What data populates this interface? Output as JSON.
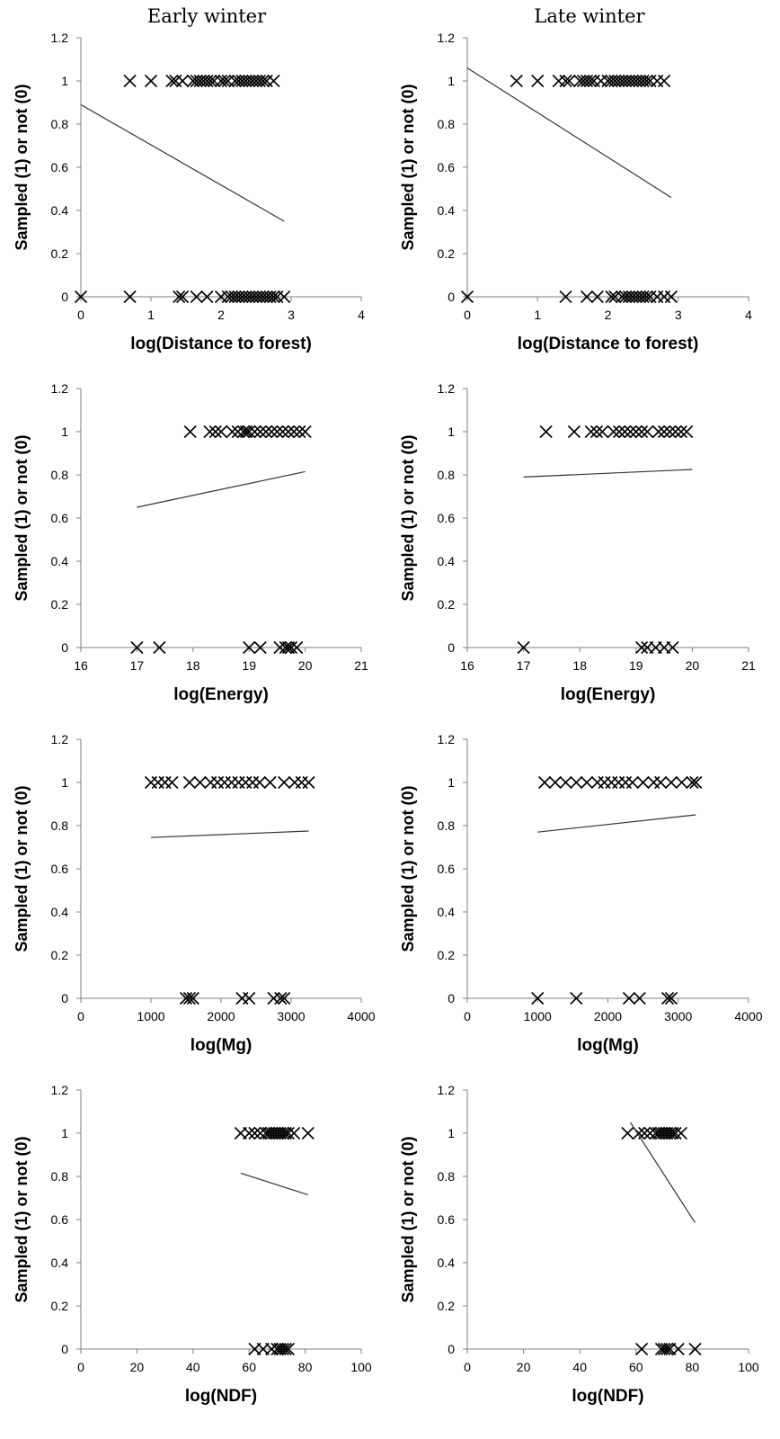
{
  "column_titles": [
    "Early winter",
    "Late winter"
  ],
  "chart_data": [
    {
      "type": "scatter",
      "panel": "early-distance",
      "xlabel": "log(Distance to forest)",
      "ylabel": "Sampled (1) or not (0)",
      "xlim": [
        0,
        4
      ],
      "ylim": [
        0,
        1.2
      ],
      "xticks": [
        "0",
        "1",
        "2",
        "3",
        "4"
      ],
      "yticks": [
        "0",
        "0.2",
        "0.4",
        "0.6",
        "0.8",
        "1",
        "1.2"
      ],
      "points_1": [
        0.7,
        1.0,
        1.3,
        1.35,
        1.45,
        1.6,
        1.65,
        1.7,
        1.75,
        1.8,
        1.85,
        1.9,
        2.0,
        2.05,
        2.1,
        2.2,
        2.25,
        2.3,
        2.35,
        2.4,
        2.45,
        2.5,
        2.55,
        2.6,
        2.65,
        2.75
      ],
      "points_0": [
        0.0,
        0.7,
        1.4,
        1.45,
        1.65,
        1.8,
        2.0,
        2.1,
        2.15,
        2.2,
        2.25,
        2.3,
        2.35,
        2.4,
        2.45,
        2.5,
        2.55,
        2.6,
        2.65,
        2.7,
        2.75,
        2.8,
        2.9
      ],
      "trend": [
        [
          0,
          0.89
        ],
        [
          2.9,
          0.35
        ]
      ]
    },
    {
      "type": "scatter",
      "panel": "late-distance",
      "xlabel": "log(Distance to forest)",
      "ylabel": "Sampled (1) or not (0)",
      "xlim": [
        0,
        4
      ],
      "ylim": [
        0,
        1.2
      ],
      "xticks": [
        "0",
        "1",
        "2",
        "3",
        "4"
      ],
      "yticks": [
        "0",
        "0.2",
        "0.4",
        "0.6",
        "0.8",
        "1",
        "1.2"
      ],
      "points_1": [
        0.7,
        1.0,
        1.3,
        1.4,
        1.45,
        1.6,
        1.65,
        1.7,
        1.75,
        1.8,
        1.9,
        2.0,
        2.05,
        2.1,
        2.15,
        2.2,
        2.25,
        2.3,
        2.35,
        2.4,
        2.45,
        2.5,
        2.55,
        2.6,
        2.7,
        2.8
      ],
      "points_0": [
        0.0,
        1.4,
        1.7,
        1.85,
        2.05,
        2.1,
        2.2,
        2.25,
        2.3,
        2.35,
        2.4,
        2.45,
        2.5,
        2.55,
        2.6,
        2.7,
        2.8,
        2.9
      ],
      "trend": [
        [
          0,
          1.06
        ],
        [
          2.9,
          0.46
        ]
      ]
    },
    {
      "type": "scatter",
      "panel": "early-energy",
      "xlabel": "log(Energy)",
      "ylabel": "Sampled (1) or not (0)",
      "xlim": [
        16,
        21
      ],
      "ylim": [
        0,
        1.2
      ],
      "xticks": [
        "16",
        "17",
        "18",
        "19",
        "20",
        "21"
      ],
      "yticks": [
        "0",
        "0.2",
        "0.4",
        "0.6",
        "0.8",
        "1",
        "1.2"
      ],
      "points_1": [
        17.95,
        18.3,
        18.4,
        18.5,
        18.7,
        18.8,
        18.9,
        18.95,
        19.0,
        19.1,
        19.2,
        19.3,
        19.4,
        19.5,
        19.6,
        19.7,
        19.8,
        19.9,
        20.0
      ],
      "points_0": [
        17.0,
        17.4,
        19.0,
        19.2,
        19.55,
        19.65,
        19.7,
        19.75,
        19.85
      ],
      "trend": [
        [
          17.0,
          0.65
        ],
        [
          20.0,
          0.815
        ]
      ]
    },
    {
      "type": "scatter",
      "panel": "late-energy",
      "xlabel": "log(Energy)",
      "ylabel": "Sampled (1) or not (0)",
      "xlim": [
        16,
        21
      ],
      "ylim": [
        0,
        1.2
      ],
      "xticks": [
        "16",
        "17",
        "18",
        "19",
        "20",
        "21"
      ],
      "yticks": [
        "0",
        "0.2",
        "0.4",
        "0.6",
        "0.8",
        "1",
        "1.2"
      ],
      "points_1": [
        17.4,
        17.9,
        18.2,
        18.3,
        18.4,
        18.6,
        18.7,
        18.8,
        18.9,
        19.0,
        19.1,
        19.2,
        19.4,
        19.5,
        19.6,
        19.7,
        19.8,
        19.9
      ],
      "points_0": [
        17.0,
        19.1,
        19.2,
        19.35,
        19.5,
        19.65
      ],
      "trend": [
        [
          17.0,
          0.79
        ],
        [
          20.0,
          0.825
        ]
      ]
    },
    {
      "type": "scatter",
      "panel": "early-mg",
      "xlabel": "log(Mg)",
      "ylabel": "Sampled (1) or not (0)",
      "xlim": [
        0,
        4000
      ],
      "ylim": [
        0,
        1.2
      ],
      "xticks": [
        "0",
        "1000",
        "2000",
        "3000",
        "4000"
      ],
      "yticks": [
        "0",
        "0.2",
        "0.4",
        "0.6",
        "0.8",
        "1",
        "1.2"
      ],
      "points_1": [
        1000,
        1100,
        1200,
        1300,
        1550,
        1700,
        1850,
        1950,
        2050,
        2150,
        2250,
        2350,
        2450,
        2550,
        2700,
        2900,
        3050,
        3150,
        3250
      ],
      "points_0": [
        1500,
        1550,
        1600,
        2300,
        2400,
        2750,
        2850,
        2900
      ],
      "trend": [
        [
          1000,
          0.745
        ],
        [
          3250,
          0.775
        ]
      ]
    },
    {
      "type": "scatter",
      "panel": "late-mg",
      "xlabel": "log(Mg)",
      "ylabel": "Sampled (1) or not (0)",
      "xlim": [
        0,
        4000
      ],
      "ylim": [
        0,
        1.2
      ],
      "xticks": [
        "0",
        "1000",
        "2000",
        "3000",
        "4000"
      ],
      "yticks": [
        "0",
        "0.2",
        "0.4",
        "0.6",
        "0.8",
        "1",
        "1.2"
      ],
      "points_1": [
        1100,
        1250,
        1400,
        1550,
        1700,
        1850,
        1950,
        2050,
        2150,
        2250,
        2350,
        2500,
        2650,
        2750,
        2900,
        3050,
        3200,
        3250
      ],
      "points_0": [
        1000,
        1550,
        2300,
        2450,
        2850,
        2900
      ],
      "trend": [
        [
          1000,
          0.77
        ],
        [
          3250,
          0.85
        ]
      ]
    },
    {
      "type": "scatter",
      "panel": "early-ndf",
      "xlabel": "log(NDF)",
      "ylabel": "Sampled (1) or not (0)",
      "xlim": [
        0,
        100
      ],
      "ylim": [
        0,
        1.2
      ],
      "xticks": [
        "0",
        "20",
        "40",
        "60",
        "80",
        "100"
      ],
      "yticks": [
        "0",
        "0.2",
        "0.4",
        "0.6",
        "0.8",
        "1",
        "1.2"
      ],
      "points_1": [
        57,
        60,
        62,
        64,
        66,
        67,
        68,
        69,
        70,
        71,
        72,
        73,
        74,
        76,
        81
      ],
      "points_0": [
        62,
        65,
        68,
        70,
        71,
        72,
        73,
        74
      ],
      "trend": [
        [
          57,
          0.815
        ],
        [
          81,
          0.715
        ]
      ]
    },
    {
      "type": "scatter",
      "panel": "late-ndf",
      "xlabel": "log(NDF)",
      "ylabel": "Sampled (1) or not (0)",
      "xlim": [
        0,
        100
      ],
      "ylim": [
        0,
        1.2
      ],
      "xticks": [
        "0",
        "20",
        "40",
        "60",
        "80",
        "100"
      ],
      "yticks": [
        "0",
        "0.2",
        "0.4",
        "0.6",
        "0.8",
        "1",
        "1.2"
      ],
      "points_1": [
        57,
        61,
        63,
        65,
        67,
        68,
        69,
        70,
        71,
        72,
        73,
        74,
        76
      ],
      "points_0": [
        62,
        69,
        70,
        71,
        72,
        75,
        81
      ],
      "trend": [
        [
          58,
          1.05
        ],
        [
          81,
          0.585
        ]
      ]
    }
  ]
}
